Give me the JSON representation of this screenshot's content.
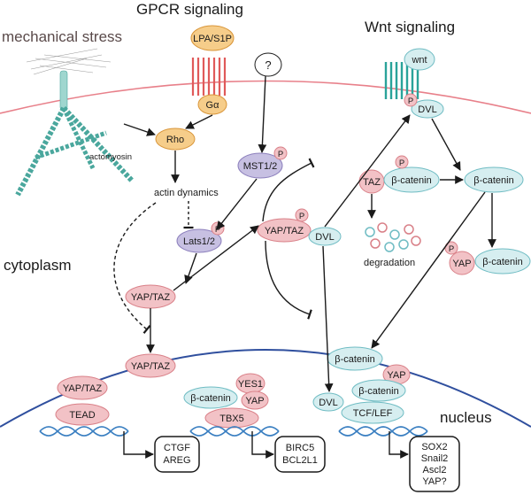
{
  "headers": {
    "gpcr": "GPCR signaling",
    "wnt": "Wnt signaling",
    "mechanical": "mechanical stress",
    "cytoplasm": "cytoplasm",
    "nucleus": "nucleus"
  },
  "nodes": {
    "lpa_s1p": "LPA/S1P",
    "g_alpha": "Gα",
    "unknown": "?",
    "rho": "Rho",
    "actomyosin": "actomyosin",
    "actin_dynamics": "actin dynamics",
    "mst": "MST1/2",
    "lats": "Lats1/2",
    "yaptaz_cyto": "YAP/TAZ",
    "yaptaz_mid": "YAP/TAZ",
    "dvl_mid": "DVL",
    "yaptaz_nuc_entry": "YAP/TAZ",
    "wnt": "wnt",
    "dvl_top": "DVL",
    "taz": "TAZ",
    "bcat_complex": "β-catenin",
    "bcat_free": "β-catenin",
    "degradation": "degradation",
    "yap_p": "YAP",
    "bcat_yap": "β-catenin",
    "bcat_nuc": "β-catenin",
    "phospho": "P"
  },
  "nucleus_complexes": {
    "tead_group": {
      "cofactor": "YAP/TAZ",
      "tf": "TEAD"
    },
    "tbx5_group": {
      "bcat": "β-catenin",
      "yes1": "YES1",
      "yap": "YAP",
      "tf": "TBX5"
    },
    "tcf_group": {
      "yap": "YAP",
      "bcat": "β-catenin",
      "dvl": "DVL",
      "tf": "TCF/LEF"
    }
  },
  "targets": {
    "tead_targets": [
      "CTGF",
      "AREG"
    ],
    "tbx5_targets": [
      "BIRC5",
      "BCL2L1"
    ],
    "tcf_targets": [
      "SOX2",
      "Snail2",
      "Ascl2",
      "YAP?"
    ]
  },
  "colors": {
    "membrane": "#e8808a",
    "nuclear_envelope": "#2f4f9e",
    "orange_node": "#f6cd8a",
    "orange_stroke": "#d9963a",
    "pink_node": "#f2c2c6",
    "pink_stroke": "#d98088",
    "purple_node": "#c7c0e2",
    "purple_stroke": "#8d80bd",
    "teal_node": "#d6eef0",
    "teal_stroke": "#6fbcc3",
    "receptor_red": "#e05a5a",
    "receptor_teal": "#2aa39a",
    "dna": "#3a7fc1"
  }
}
